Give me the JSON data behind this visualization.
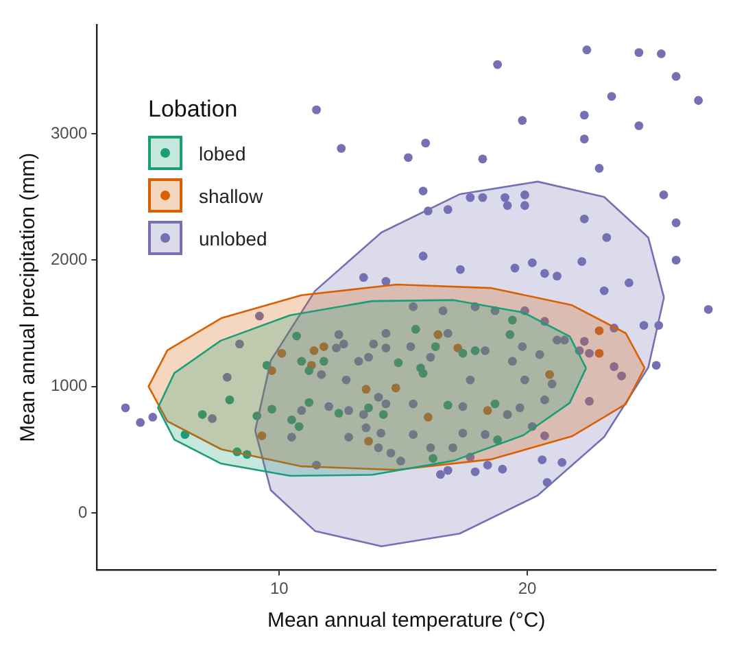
{
  "chart_data": {
    "type": "scatter",
    "xlabel": "Mean annual temperature (°C)",
    "ylabel": "Mean annual precipitation (mm)",
    "legend_title": "Lobation",
    "legend": "top left",
    "grid": false,
    "marker": "circle",
    "xlim": [
      2.65,
      27.6
    ],
    "xticks": [
      10,
      20
    ],
    "ylim": [
      -450,
      3860
    ],
    "yticks": [
      0,
      1000,
      2000,
      3000
    ],
    "series": [
      {
        "name": "lobed",
        "color": "#1b9e77",
        "x": [
          8.0,
          6.9,
          6.2,
          8.3,
          8.7,
          9.5,
          9.1,
          9.7,
          10.7,
          10.9,
          11.2,
          11.8,
          11.2,
          10.5,
          10.8,
          12.4,
          14.8,
          13.6,
          14.2,
          15.5,
          16.3,
          17.4,
          17.9,
          19.4,
          19.3,
          15.7,
          15.8,
          16.8,
          18.7,
          18.8,
          16.2
        ],
        "values": [
          895,
          779,
          621,
          484,
          463,
          1168,
          768,
          821,
          1400,
          1200,
          1126,
          1200,
          874,
          737,
          684,
          789,
          1189,
          832,
          779,
          1453,
          1316,
          1263,
          1284,
          1526,
          1411,
          1147,
          1105,
          853,
          863,
          579,
          432
        ]
      },
      {
        "name": "shallow",
        "color": "#d95f02",
        "x": [
          10.1,
          9.7,
          11.4,
          11.8,
          11.3,
          13.5,
          14.7,
          9.3,
          13.6,
          16.4,
          17.2,
          22.9,
          22.9,
          20.9,
          18.4,
          16.0
        ],
        "values": [
          1263,
          1126,
          1284,
          1316,
          1168,
          979,
          989,
          611,
          568,
          1411,
          1305,
          1442,
          1263,
          1095,
          811,
          758
        ]
      },
      {
        "name": "unlobed",
        "color": "#7570b3",
        "x": [
          22.4,
          24.5,
          25.4,
          26.0,
          26.9,
          18.8,
          23.4,
          19.8,
          22.3,
          22.3,
          24.5,
          15.9,
          15.2,
          18.2,
          22.9,
          15.8,
          25.5,
          26.0,
          26.0,
          23.2,
          16.0,
          16.8,
          17.7,
          18.2,
          19.1,
          19.2,
          19.9,
          19.9,
          22.3,
          15.8,
          17.3,
          19.5,
          20.2,
          20.7,
          21.2,
          22.2,
          11.5,
          12.5,
          27.3,
          25.2,
          25.3,
          24.7,
          23.1,
          24.1,
          20.8,
          21.4,
          20.6,
          19.0,
          18.4,
          17.9,
          16.5,
          16.8,
          22.5,
          23.8,
          23.5,
          23.5,
          22.5,
          22.3,
          20.2,
          20.7,
          3.8,
          4.4,
          4.9,
          9.2,
          8.4,
          7.9,
          7.3,
          13.4,
          14.3,
          11.5,
          10.5,
          12.4,
          12.6,
          12.3,
          13.2,
          13.8,
          14.3,
          14.3,
          11.7,
          12.7,
          13.6,
          14.0,
          14.3,
          12.0,
          10.9,
          12.8,
          13.4,
          13.5,
          12.8,
          14.0,
          14.5,
          14.9,
          14.1,
          15.4,
          16.6,
          17.9,
          18.7,
          19.9,
          20.7,
          21.2,
          22.1,
          15.3,
          18.3,
          19.8,
          20.5,
          17.7,
          19.9,
          21.0,
          19.4,
          15.4,
          17.4,
          19.7,
          20.7,
          15.4,
          17.4,
          18.3,
          16.1,
          17.0,
          17.7,
          19.2,
          16.8,
          16.1,
          19.2,
          21.5
        ],
        "values": [
          3663,
          3642,
          3632,
          3453,
          3263,
          3547,
          3295,
          3105,
          3147,
          2958,
          3063,
          2926,
          2811,
          2800,
          2726,
          2547,
          2516,
          2295,
          2000,
          2179,
          2389,
          2400,
          2495,
          2495,
          2495,
          2432,
          2516,
          2432,
          2326,
          2032,
          1926,
          1937,
          1979,
          1895,
          1874,
          1989,
          3189,
          2884,
          1610,
          1168,
          1484,
          1484,
          1758,
          1821,
          242,
          400,
          421,
          347,
          379,
          326,
          305,
          337,
          884,
          1084,
          1158,
          1463,
          1263,
          1358,
          684,
          611,
          832,
          716,
          758,
          1558,
          1337,
          1074,
          747,
          1863,
          1832,
          379,
          600,
          1411,
          1337,
          1305,
          1200,
          1337,
          1421,
          1305,
          1095,
          1053,
          1232,
          916,
          863,
          842,
          811,
          811,
          779,
          674,
          600,
          516,
          474,
          411,
          632,
          1632,
          1600,
          1632,
          1600,
          1600,
          1516,
          1368,
          1284,
          1316,
          1284,
          1316,
          1253,
          1053,
          1053,
          1021,
          1200,
          863,
          842,
          832,
          895,
          621,
          632,
          621,
          516,
          516,
          442,
          779,
          1421,
          1232,
          779,
          1368
        ]
      },
      {
        "type": "area",
        "marker": "none",
        "color": "#1b9e77",
        "x": [
          22.37,
          21.71,
          19.84,
          17.04,
          13.74,
          10.44,
          7.64,
          5.77,
          5.11,
          5.77,
          7.64,
          10.44,
          13.74,
          17.04,
          19.84,
          21.71,
          22.37
        ],
        "values": [
          1146,
          871,
          615,
          414,
          302,
          294,
          392,
          581,
          832,
          1107,
          1363,
          1564,
          1676,
          1684,
          1586,
          1397,
          1146
        ]
      },
      {
        "type": "area",
        "marker": "none",
        "color": "#d95f02",
        "x": [
          24.73,
          23.97,
          21.8,
          18.56,
          14.73,
          10.9,
          7.66,
          5.49,
          4.73,
          5.49,
          7.66,
          10.9,
          14.73,
          18.56,
          21.8,
          23.97,
          24.73
        ],
        "values": [
          1147,
          861,
          607,
          425,
          341,
          369,
          504,
          726,
          1001,
          1287,
          1541,
          1723,
          1807,
          1779,
          1644,
          1422,
          1147
        ]
      },
      {
        "type": "area",
        "marker": "none",
        "color": "#7570b3",
        "x": [
          25.51,
          24.88,
          23.1,
          20.42,
          17.27,
          14.12,
          11.44,
          9.66,
          9.03,
          9.66,
          11.44,
          14.12,
          17.27,
          20.42,
          23.1,
          24.88,
          25.51
        ],
        "values": [
          1705,
          1152,
          602,
          139,
          -163,
          -263,
          -142,
          180,
          653,
          1206,
          1756,
          2219,
          2521,
          2621,
          2500,
          2178,
          1705
        ]
      }
    ]
  }
}
